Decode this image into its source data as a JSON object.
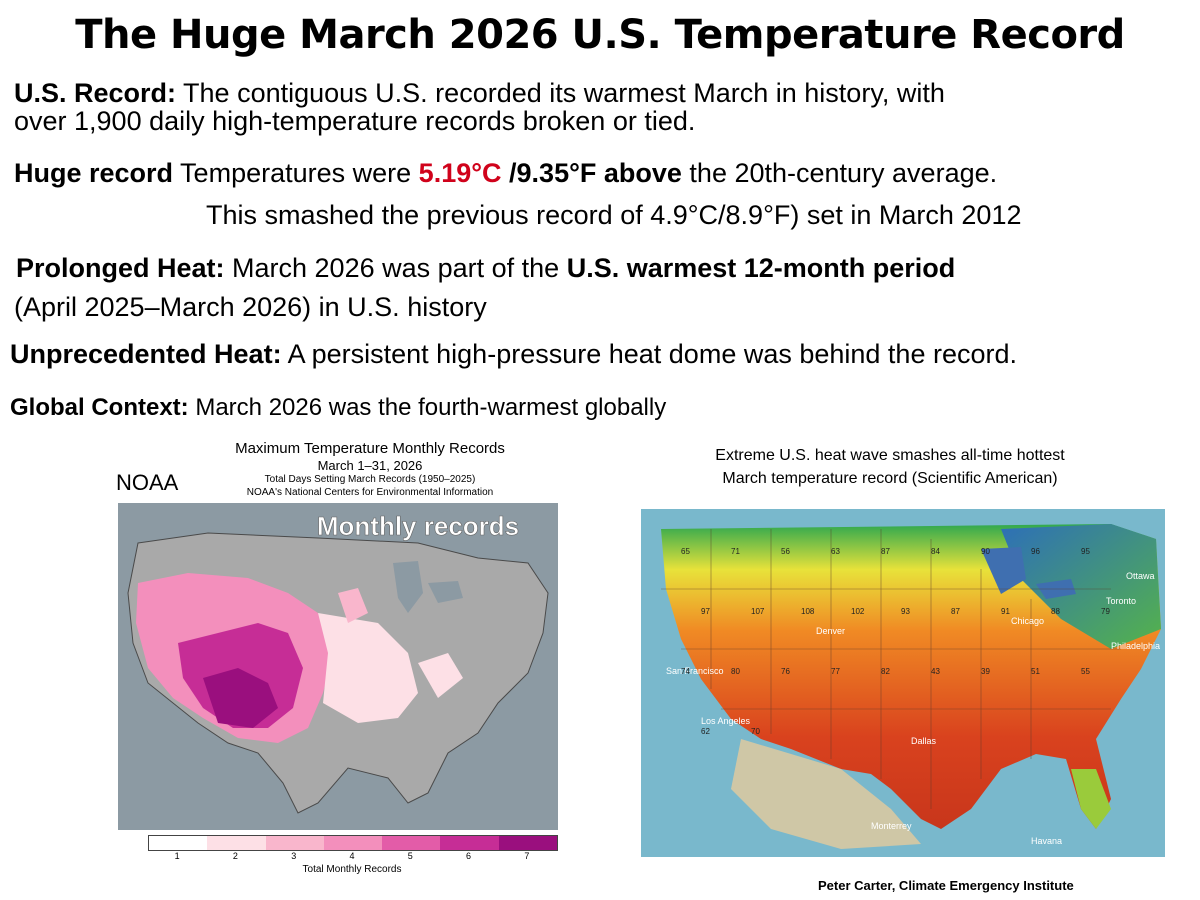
{
  "title": "The Huge March 2026 U.S. Temperature Record",
  "us_record": {
    "label": "U.S. Record:",
    "text1": " The contiguous U.S. recorded its warmest March in history, with",
    "text2": "over 1,900 daily high-temperature records broken or tied."
  },
  "huge_record": {
    "label": "Huge record",
    "text_a": " Temperatures were ",
    "value_c": "5.19°C",
    "value_f": " /9.35°F above",
    "text_b": " the 20th-century average.",
    "line2": "This smashed the previous record of 4.9°C/8.9°F) set in March 2012"
  },
  "prolonged": {
    "label": "Prolonged Heat:",
    "text_a": " March 2026 was part of the ",
    "bold": "U.S. warmest 12-month period",
    "line2": "(April 2025–March 2026) in U.S. history"
  },
  "unprecedented": {
    "label": "Unprecedented Heat:",
    "text": " A persistent high-pressure heat dome was behind the record."
  },
  "global": {
    "label": "Global Context:",
    "text": " March 2026 was the fourth-warmest globally"
  },
  "noaa_map": {
    "source_label": "NOAA",
    "title": "Maximum Temperature Monthly Records",
    "subtitle": "March 1–31, 2026",
    "line3": "Total Days Setting March Records (1950–2025)",
    "line4": "NOAA's National Centers for Environmental Information",
    "overlay": "Monthly records",
    "legend_title": "Total Monthly Records",
    "legend_ticks": [
      "1",
      "2",
      "3",
      "4",
      "5",
      "6",
      "7"
    ],
    "legend_colors": [
      "#ffffff",
      "#fde0e6",
      "#f9b6cc",
      "#f38fbc",
      "#e35ca8",
      "#c62d96",
      "#9a0f7e"
    ]
  },
  "heat_map": {
    "caption1": "Extreme U.S. heat wave smashes all-time hottest",
    "caption2": "March temperature record (Scientific American)",
    "city_labels": [
      "Ottawa",
      "Toronto",
      "Chicago",
      "Denver",
      "San Francisco",
      "Los Angeles",
      "Dallas",
      "Philadelphia",
      "Monterrey",
      "Havana"
    ],
    "temps": [
      "65",
      "71",
      "56",
      "63",
      "87",
      "84",
      "90",
      "96",
      "95",
      "97",
      "107",
      "108",
      "102",
      "93",
      "87",
      "91",
      "88",
      "79",
      "74",
      "80",
      "76",
      "77",
      "82",
      "43",
      "39",
      "51",
      "55",
      "62",
      "70"
    ]
  },
  "credit": "Peter Carter, Climate Emergency Institute"
}
